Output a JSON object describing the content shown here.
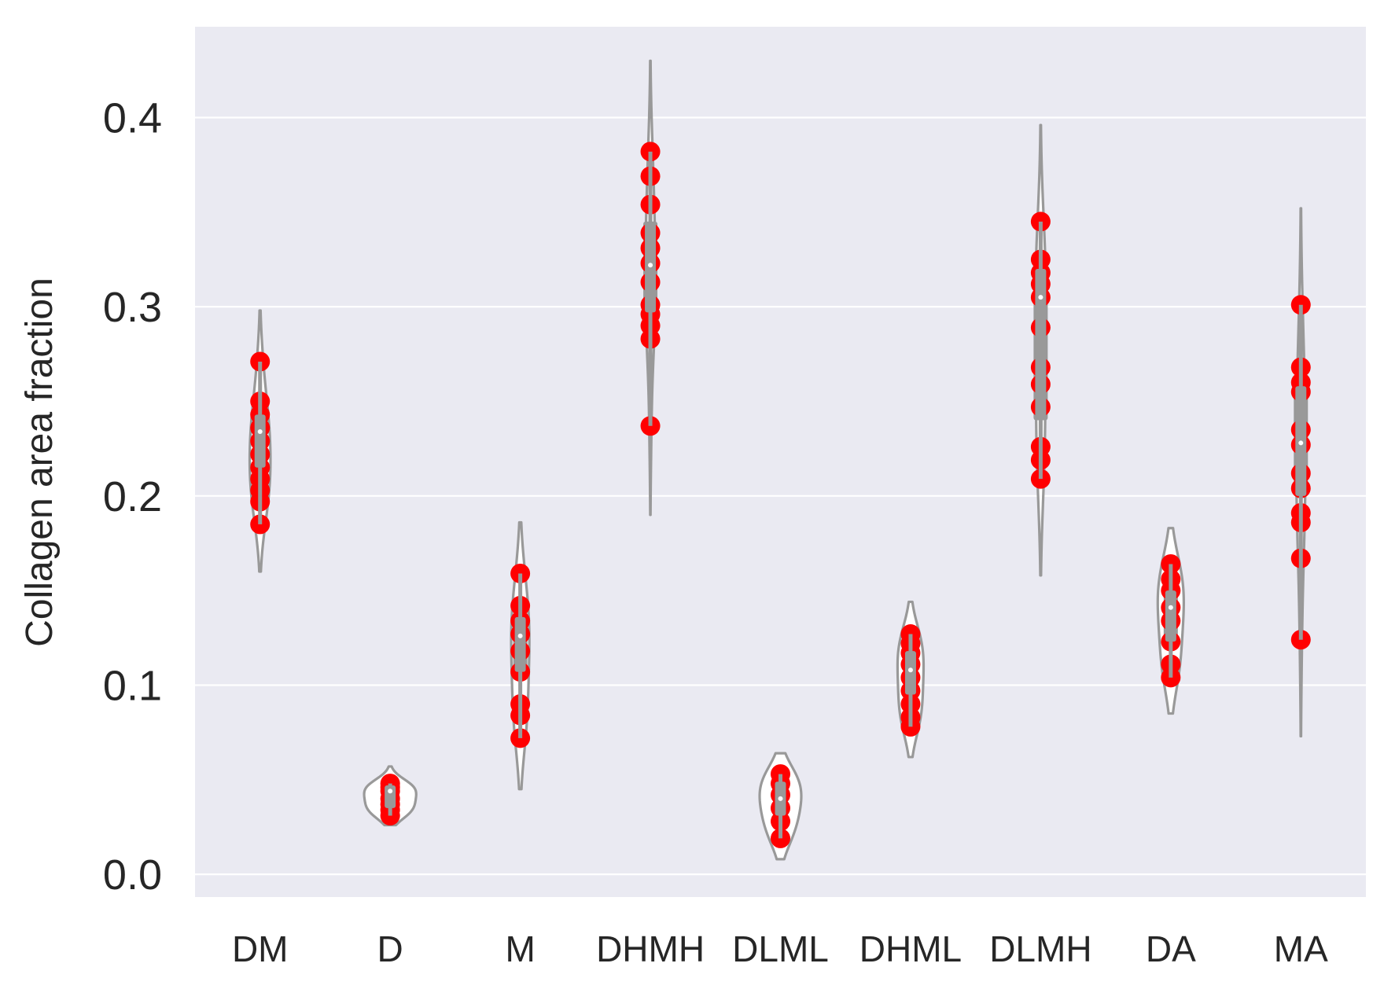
{
  "chart_data": {
    "type": "violin",
    "ylabel": "Collagen area fraction",
    "xlabel": "",
    "ylim": [
      -0.012,
      0.448
    ],
    "yticks": [
      "0.0",
      "0.1",
      "0.2",
      "0.3",
      "0.4"
    ],
    "grid": true,
    "colors": {
      "background": "#eaeaf2",
      "grid": "#ffffff",
      "violin": "#999999",
      "points": "#ff0000",
      "median": "#ffffff"
    },
    "categories": [
      {
        "name": "DM",
        "points": [
          0.185,
          0.197,
          0.203,
          0.209,
          0.215,
          0.222,
          0.229,
          0.236,
          0.243,
          0.25,
          0.271
        ],
        "kde_range": [
          0.16,
          0.298
        ],
        "width_scale": 0.16,
        "median": 0.234,
        "q1": 0.215,
        "q3": 0.243
      },
      {
        "name": "D",
        "points": [
          0.031,
          0.034,
          0.037,
          0.04,
          0.044,
          0.046,
          0.048
        ],
        "kde_range": [
          0.026,
          0.057
        ],
        "width_scale": 0.4,
        "median": 0.044,
        "q1": 0.035,
        "q3": 0.047
      },
      {
        "name": "M",
        "points": [
          0.072,
          0.084,
          0.09,
          0.107,
          0.118,
          0.127,
          0.134,
          0.142,
          0.159
        ],
        "kde_range": [
          0.045,
          0.186
        ],
        "width_scale": 0.14,
        "median": 0.126,
        "q1": 0.107,
        "q3": 0.136
      },
      {
        "name": "DHMH",
        "points": [
          0.237,
          0.283,
          0.29,
          0.296,
          0.301,
          0.313,
          0.323,
          0.331,
          0.339,
          0.354,
          0.369,
          0.382
        ],
        "kde_range": [
          0.19,
          0.43
        ],
        "width_scale": 0.08,
        "median": 0.322,
        "q1": 0.297,
        "q3": 0.345
      },
      {
        "name": "DLML",
        "points": [
          0.019,
          0.028,
          0.035,
          0.042,
          0.048,
          0.053
        ],
        "kde_range": [
          0.008,
          0.064
        ],
        "width_scale": 0.32,
        "median": 0.04,
        "q1": 0.031,
        "q3": 0.049
      },
      {
        "name": "DHML",
        "points": [
          0.078,
          0.083,
          0.09,
          0.097,
          0.104,
          0.111,
          0.117,
          0.122,
          0.127
        ],
        "kde_range": [
          0.062,
          0.144
        ],
        "width_scale": 0.2,
        "median": 0.108,
        "q1": 0.095,
        "q3": 0.118
      },
      {
        "name": "DLMH",
        "points": [
          0.209,
          0.219,
          0.226,
          0.247,
          0.259,
          0.268,
          0.289,
          0.305,
          0.312,
          0.318,
          0.325,
          0.345
        ],
        "kde_range": [
          0.158,
          0.396
        ],
        "width_scale": 0.08,
        "median": 0.305,
        "q1": 0.24,
        "q3": 0.32
      },
      {
        "name": "DA",
        "points": [
          0.104,
          0.111,
          0.123,
          0.134,
          0.141,
          0.15,
          0.156,
          0.164
        ],
        "kde_range": [
          0.085,
          0.183
        ],
        "width_scale": 0.2,
        "median": 0.141,
        "q1": 0.123,
        "q3": 0.15
      },
      {
        "name": "MA",
        "points": [
          0.124,
          0.167,
          0.186,
          0.191,
          0.204,
          0.212,
          0.227,
          0.235,
          0.255,
          0.26,
          0.268,
          0.301
        ],
        "kde_range": [
          0.073,
          0.352
        ],
        "width_scale": 0.07,
        "median": 0.228,
        "q1": 0.2,
        "q3": 0.258
      }
    ]
  }
}
